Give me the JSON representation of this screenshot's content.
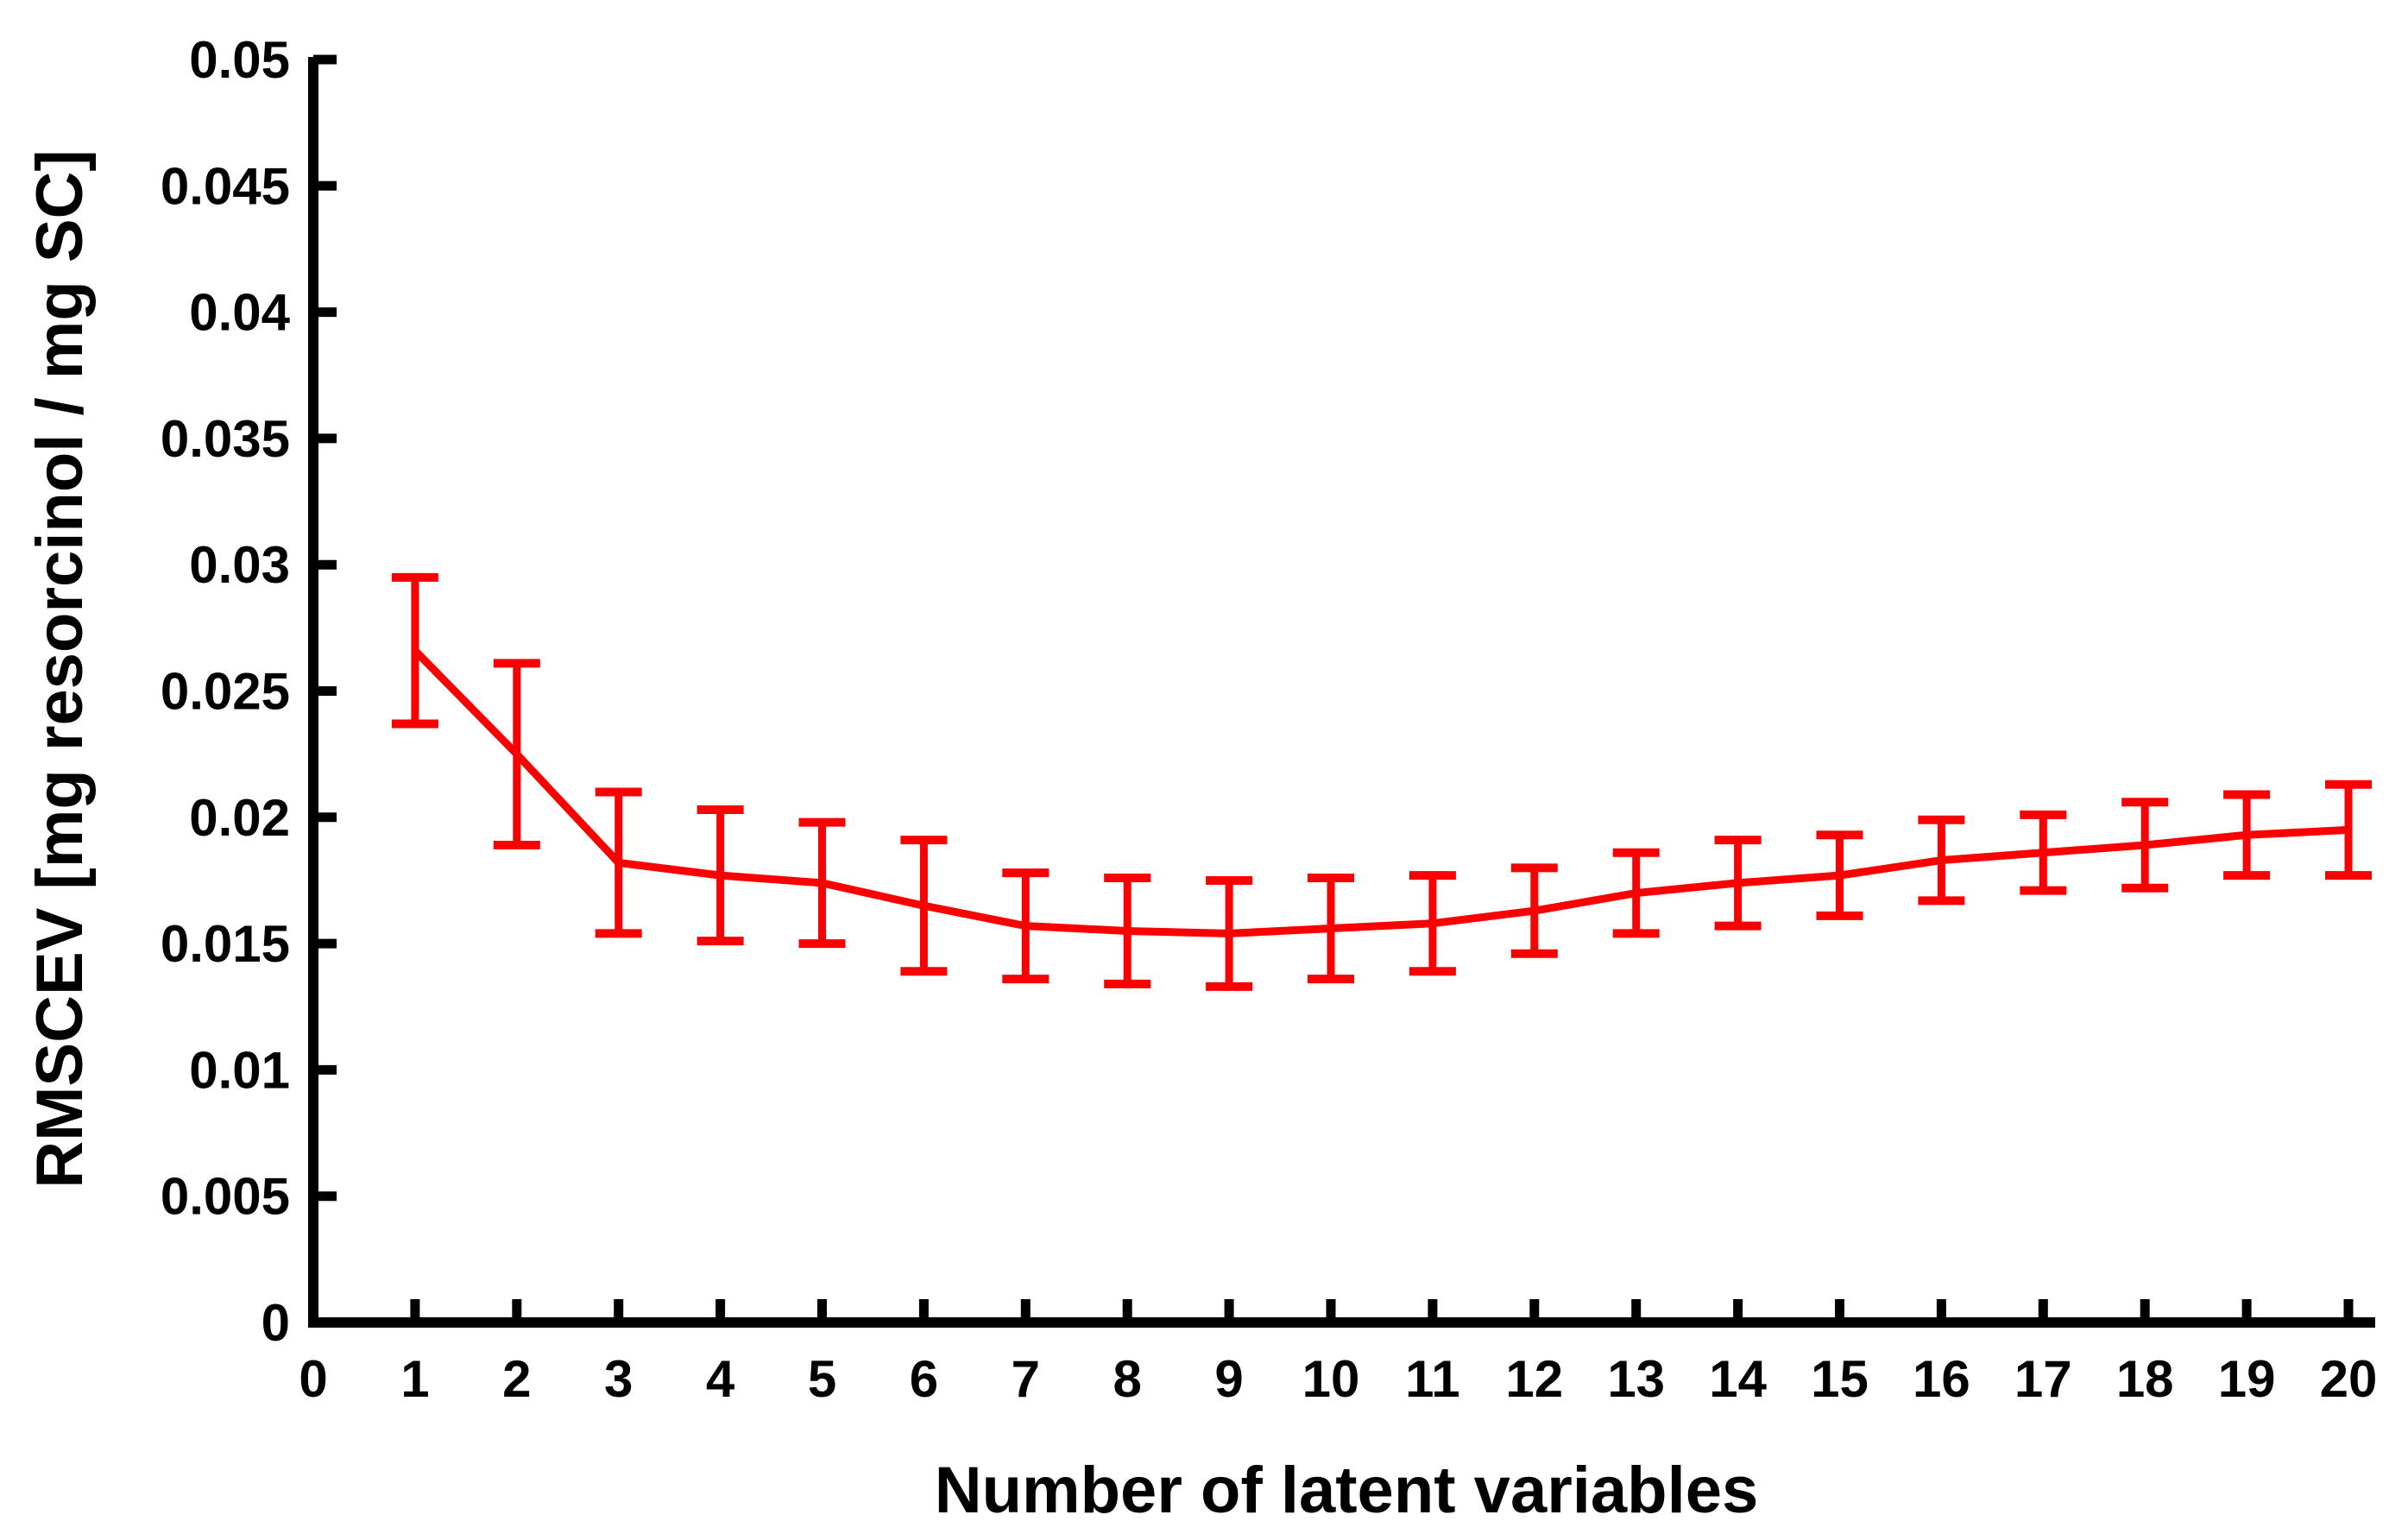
{
  "chart_data": {
    "type": "line",
    "title": "",
    "xlabel": "Number of latent variables",
    "ylabel": "RMSCEV [mg resorcinol / mg SC]",
    "series_name": "RMSCEV",
    "x": [
      1,
      2,
      3,
      4,
      5,
      6,
      7,
      8,
      9,
      10,
      11,
      12,
      13,
      14,
      15,
      16,
      17,
      18,
      19,
      20
    ],
    "values": [
      0.0266,
      0.0225,
      0.0182,
      0.0177,
      0.0174,
      0.0165,
      0.0157,
      0.0155,
      0.0154,
      0.0156,
      0.0158,
      0.0163,
      0.017,
      0.0174,
      0.0177,
      0.0183,
      0.0186,
      0.0189,
      0.0193,
      0.0195
    ],
    "errors": [
      0.0029,
      0.0036,
      0.0028,
      0.0026,
      0.0024,
      0.0026,
      0.0021,
      0.0021,
      0.0021,
      0.002,
      0.0019,
      0.0017,
      0.0016,
      0.0017,
      0.0016,
      0.0016,
      0.0015,
      0.0017,
      0.0016,
      0.0018
    ],
    "xlim": [
      0,
      20
    ],
    "ylim": [
      0,
      0.05
    ],
    "x_ticks": [
      0,
      1,
      2,
      3,
      4,
      5,
      6,
      7,
      8,
      9,
      10,
      11,
      12,
      13,
      14,
      15,
      16,
      17,
      18,
      19,
      20
    ],
    "x_tick_labels": [
      "0",
      "1",
      "2",
      "3",
      "4",
      "5",
      "6",
      "7",
      "8",
      "9",
      "10",
      "11",
      "12",
      "13",
      "14",
      "15",
      "16",
      "17",
      "18",
      "19",
      "20"
    ],
    "y_ticks": [
      0,
      0.005,
      0.01,
      0.015,
      0.02,
      0.025,
      0.03,
      0.035,
      0.04,
      0.045,
      0.05
    ],
    "y_tick_labels": [
      "0",
      "0.005",
      "0.01",
      "0.015",
      "0.02",
      "0.025",
      "0.03",
      "0.035",
      "0.04",
      "0.045",
      "0.05"
    ],
    "grid": false,
    "legend": null,
    "series_color": "#FA0000",
    "axis_color": "#000000",
    "background_color": "#FFFFFF",
    "marker": "none",
    "error_bar_caps": true
  }
}
